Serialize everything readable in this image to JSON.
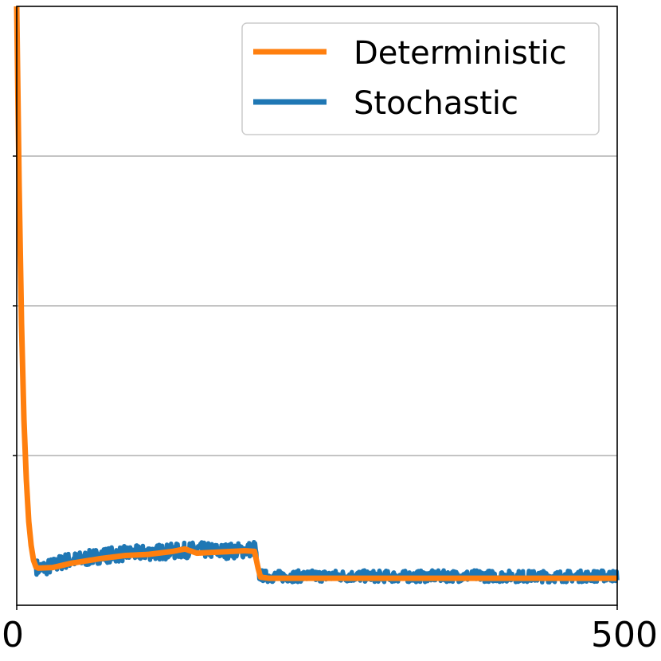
{
  "chart_data": {
    "type": "line",
    "title": "",
    "xlabel": "",
    "ylabel": "",
    "xlim": [
      0,
      500
    ],
    "ylim": [
      0,
      1
    ],
    "x_ticks": [
      {
        "value": 0,
        "label": "0"
      },
      {
        "value": 500,
        "label": "500"
      }
    ],
    "y_ticks": [
      0.25,
      0.5,
      0.75
    ],
    "grid": "horizontal",
    "legend": "top-right",
    "series": [
      {
        "name": "Stochastic",
        "color": "#1f77b4",
        "noise": 0.013,
        "points": [
          [
            0,
            1.0
          ],
          [
            2,
            0.7
          ],
          [
            4,
            0.47
          ],
          [
            6,
            0.31
          ],
          [
            8,
            0.21
          ],
          [
            10,
            0.14
          ],
          [
            12,
            0.1
          ],
          [
            14,
            0.075
          ],
          [
            16,
            0.065
          ],
          [
            18,
            0.062
          ],
          [
            22,
            0.062
          ],
          [
            30,
            0.066
          ],
          [
            40,
            0.074
          ],
          [
            55,
            0.077
          ],
          [
            70,
            0.083
          ],
          [
            90,
            0.086
          ],
          [
            110,
            0.088
          ],
          [
            130,
            0.09
          ],
          [
            150,
            0.093
          ],
          [
            170,
            0.09
          ],
          [
            190,
            0.092
          ],
          [
            199,
            0.095
          ],
          [
            200,
            0.062
          ],
          [
            202,
            0.05
          ],
          [
            210,
            0.048
          ],
          [
            260,
            0.049
          ],
          [
            320,
            0.048
          ],
          [
            380,
            0.049
          ],
          [
            440,
            0.048
          ],
          [
            500,
            0.049
          ]
        ]
      },
      {
        "name": "Deterministic",
        "color": "#ff7f0e",
        "noise": 0,
        "points": [
          [
            0,
            1.0
          ],
          [
            2,
            0.7
          ],
          [
            4,
            0.47
          ],
          [
            6,
            0.31
          ],
          [
            8,
            0.21
          ],
          [
            10,
            0.14
          ],
          [
            12,
            0.1
          ],
          [
            14,
            0.075
          ],
          [
            16,
            0.064
          ],
          [
            18,
            0.062
          ],
          [
            30,
            0.063
          ],
          [
            45,
            0.07
          ],
          [
            70,
            0.078
          ],
          [
            90,
            0.083
          ],
          [
            110,
            0.085
          ],
          [
            130,
            0.09
          ],
          [
            140,
            0.094
          ],
          [
            150,
            0.087
          ],
          [
            170,
            0.089
          ],
          [
            190,
            0.091
          ],
          [
            198,
            0.09
          ],
          [
            201,
            0.062
          ],
          [
            203,
            0.047
          ],
          [
            210,
            0.045
          ],
          [
            300,
            0.045
          ],
          [
            400,
            0.045
          ],
          [
            500,
            0.045
          ]
        ]
      }
    ]
  }
}
